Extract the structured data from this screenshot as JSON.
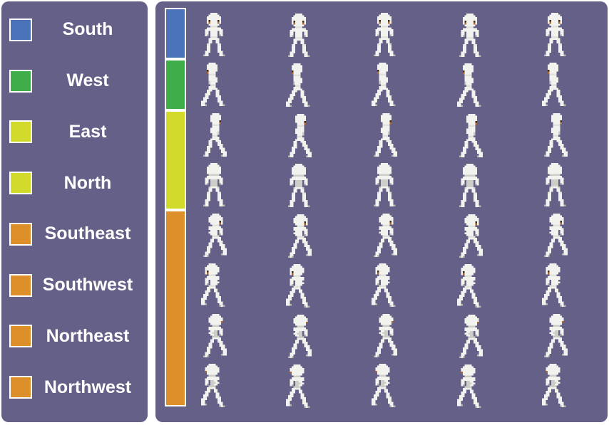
{
  "figure": {
    "background_color": "#ffffff",
    "panel_color": "#656088",
    "text_color": "#ffffff"
  },
  "legend": {
    "items": [
      {
        "label": "South",
        "color": "#4A73BA"
      },
      {
        "label": "West",
        "color": "#3FAE4A"
      },
      {
        "label": "East",
        "color": "#D2DB2B"
      },
      {
        "label": "North",
        "color": "#D2DB2B"
      },
      {
        "label": "Southeast",
        "color": "#DD8F29"
      },
      {
        "label": "Southwest",
        "color": "#DD8F29"
      },
      {
        "label": "Northeast",
        "color": "#DD8F29"
      },
      {
        "label": "Northwest",
        "color": "#DD8F29"
      }
    ]
  },
  "sprite_grid": {
    "columns": 5,
    "color_bar_segments": [
      {
        "color": "#4A73BA",
        "row_span": 1,
        "group": "South"
      },
      {
        "color": "#3FAE4A",
        "row_span": 1,
        "group": "West"
      },
      {
        "color": "#D2DB2B",
        "row_span": 2,
        "group": "East / North"
      },
      {
        "color": "#DD8F29",
        "row_span": 4,
        "group": "Southeast / Southwest / Northeast / Northwest"
      }
    ],
    "rows": [
      {
        "direction": "South",
        "orientation": "front"
      },
      {
        "direction": "West",
        "orientation": "side-left"
      },
      {
        "direction": "East",
        "orientation": "side-right"
      },
      {
        "direction": "North",
        "orientation": "back"
      },
      {
        "direction": "Southeast",
        "orientation": "front-diagonal-right"
      },
      {
        "direction": "Southwest",
        "orientation": "front-diagonal-left"
      },
      {
        "direction": "Northeast",
        "orientation": "back-diagonal-right"
      },
      {
        "direction": "Northwest",
        "orientation": "back-diagonal-left"
      }
    ]
  }
}
